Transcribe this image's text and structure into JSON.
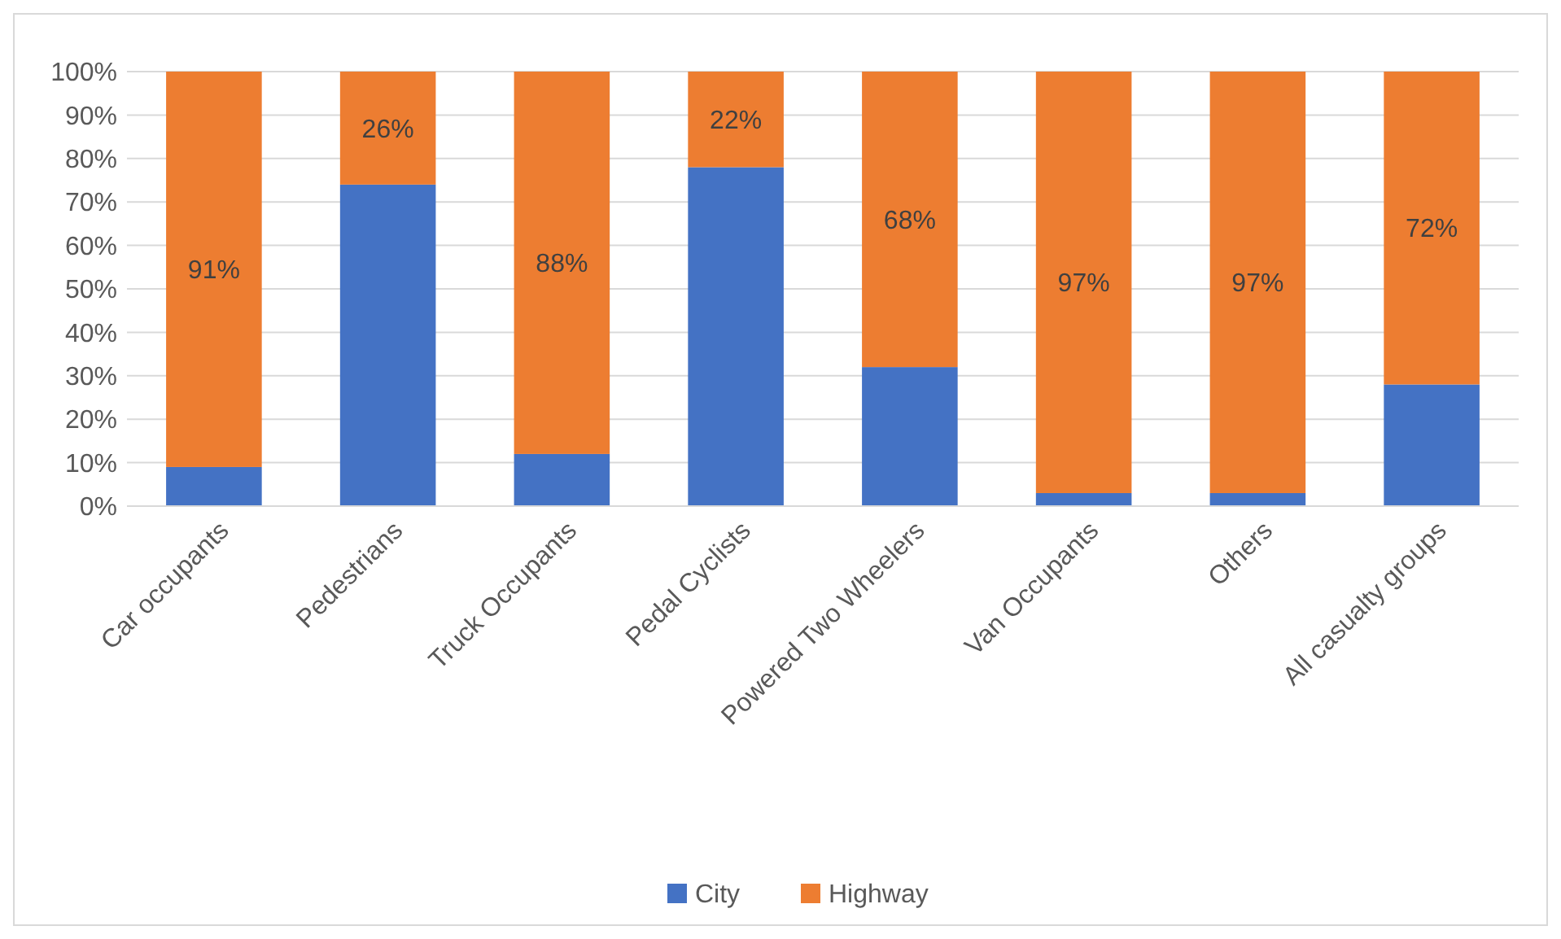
{
  "chart_data": {
    "type": "bar",
    "stacked": true,
    "categories": [
      "Car occupants",
      "Pedestrians",
      "Truck Occupants",
      "Pedal Cyclists",
      "Powered Two Wheelers",
      "Van Occupants",
      "Others",
      "All casualty groups"
    ],
    "series": [
      {
        "name": "City",
        "color": "#4472c4",
        "values": [
          9,
          74,
          12,
          78,
          32,
          3,
          3,
          28
        ]
      },
      {
        "name": "Highway",
        "color": "#ed7d31",
        "values": [
          91,
          26,
          88,
          22,
          68,
          97,
          97,
          72
        ],
        "value_labels": [
          "91%",
          "26%",
          "88%",
          "22%",
          "68%",
          "97%",
          "97%",
          "72%"
        ]
      }
    ],
    "ylim": [
      0,
      100
    ],
    "yticks": [
      {
        "value": 0,
        "label": "0%"
      },
      {
        "value": 10,
        "label": "10%"
      },
      {
        "value": 20,
        "label": "20%"
      },
      {
        "value": 30,
        "label": "30%"
      },
      {
        "value": 40,
        "label": "40%"
      },
      {
        "value": 50,
        "label": "50%"
      },
      {
        "value": 60,
        "label": "60%"
      },
      {
        "value": 70,
        "label": "70%"
      },
      {
        "value": 80,
        "label": "80%"
      },
      {
        "value": 90,
        "label": "90%"
      },
      {
        "value": 100,
        "label": "100%"
      }
    ],
    "grid": "y",
    "legend": "bottom"
  }
}
